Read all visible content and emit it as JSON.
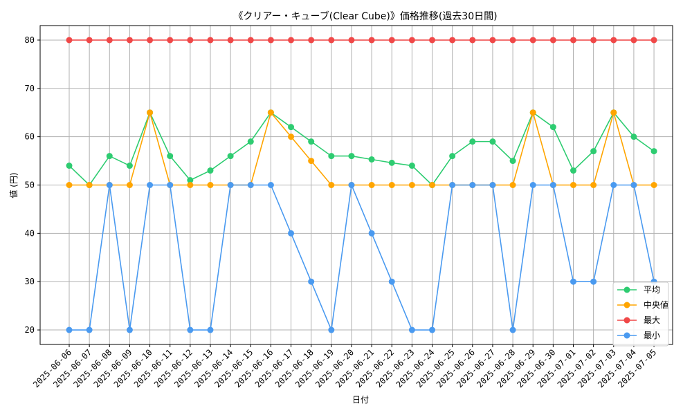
{
  "chart_data": {
    "type": "line",
    "title": "《クリアー・キューブ(Clear Cube)》価格推移(過去30日間)",
    "xlabel": "日付",
    "ylabel": "値 (円)",
    "ylim": [
      17,
      83
    ],
    "yticks": [
      20,
      30,
      40,
      50,
      60,
      70,
      80
    ],
    "grid": true,
    "legend_position": "bottom-right",
    "categories": [
      "2025-06-06",
      "2025-06-07",
      "2025-06-08",
      "2025-06-09",
      "2025-06-10",
      "2025-06-11",
      "2025-06-12",
      "2025-06-13",
      "2025-06-14",
      "2025-06-15",
      "2025-06-16",
      "2025-06-17",
      "2025-06-18",
      "2025-06-19",
      "2025-06-20",
      "2025-06-21",
      "2025-06-22",
      "2025-06-23",
      "2025-06-24",
      "2025-06-25",
      "2025-06-26",
      "2025-06-27",
      "2025-06-28",
      "2025-06-29",
      "2025-06-30",
      "2025-07-01",
      "2025-07-02",
      "2025-07-03",
      "2025-07-04",
      "2025-07-05"
    ],
    "series": [
      {
        "name": "平均",
        "color": "#2ecc71",
        "values": [
          54,
          50,
          56,
          54,
          65,
          56,
          51,
          53,
          56,
          59,
          65,
          62,
          59,
          56,
          56,
          55.3,
          54.6,
          54,
          50,
          56,
          59,
          59,
          55,
          65,
          62,
          53,
          57,
          65,
          60,
          57
        ]
      },
      {
        "name": "中央値",
        "color": "#ffa500",
        "values": [
          50,
          50,
          50,
          50,
          65,
          50,
          50,
          50,
          50,
          50,
          65,
          60,
          55,
          50,
          50,
          50,
          50,
          50,
          50,
          50,
          50,
          50,
          50,
          65,
          50,
          50,
          50,
          65,
          50,
          50
        ]
      },
      {
        "name": "最大",
        "color": "#f04848",
        "values": [
          80,
          80,
          80,
          80,
          80,
          80,
          80,
          80,
          80,
          80,
          80,
          80,
          80,
          80,
          80,
          80,
          80,
          80,
          80,
          80,
          80,
          80,
          80,
          80,
          80,
          80,
          80,
          80,
          80,
          80
        ]
      },
      {
        "name": "最小",
        "color": "#4a9af0",
        "values": [
          20,
          20,
          50,
          20,
          50,
          50,
          20,
          20,
          50,
          50,
          50,
          40,
          30,
          20,
          50,
          40,
          30,
          20,
          20,
          50,
          50,
          50,
          20,
          50,
          50,
          30,
          30,
          50,
          50,
          30
        ]
      }
    ]
  }
}
